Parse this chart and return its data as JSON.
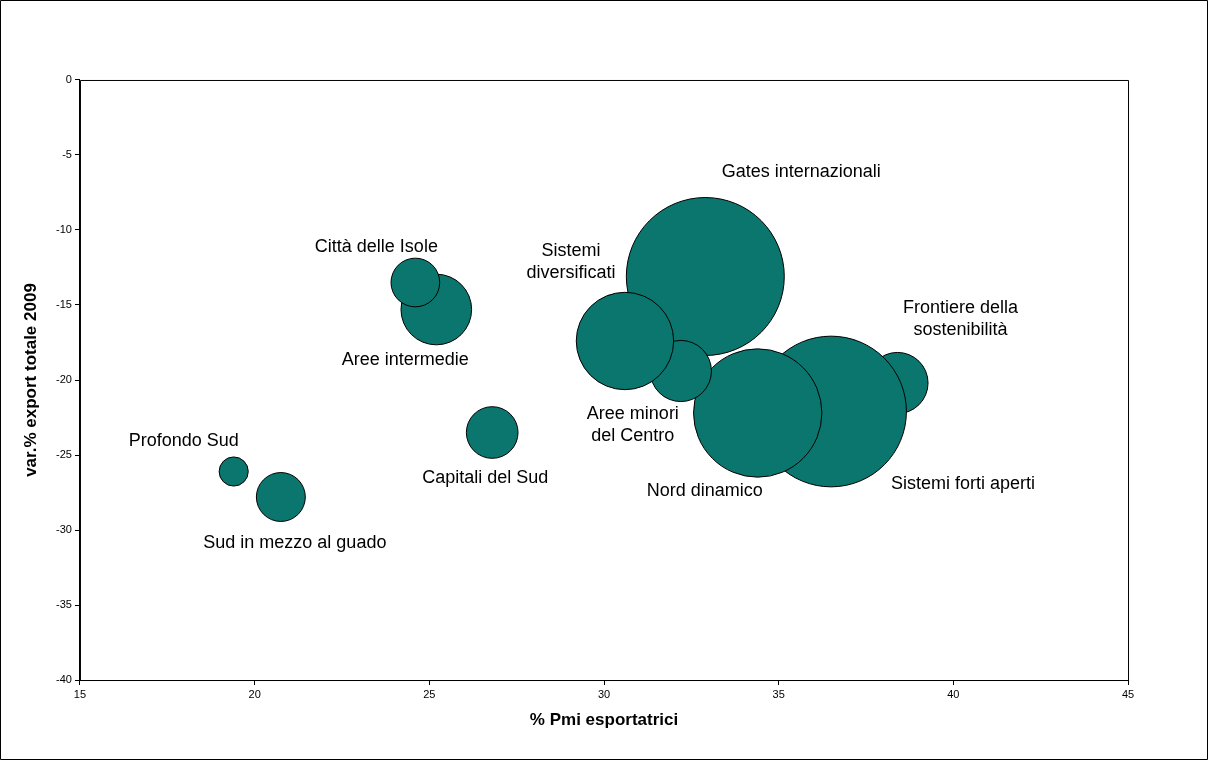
{
  "chart_data": {
    "type": "bubble",
    "xlabel": "% Pmi esportatrici",
    "ylabel": "var.% export totale 2009",
    "xlim": [
      15,
      45
    ],
    "xticks": [
      15,
      20,
      25,
      30,
      35,
      40,
      45
    ],
    "ylim": [
      -40,
      0
    ],
    "yticks": [
      -40,
      -35,
      -30,
      -25,
      -20,
      -15,
      -10,
      -5,
      0
    ],
    "grid": false,
    "legend": false,
    "series": [
      {
        "name": "Profondo Sud",
        "color": "#0b766e",
        "x": [
          19.4
        ],
        "values": [
          -26.1
        ],
        "sizes": [
          0.034
        ]
      },
      {
        "name": "Sud in mezzo al guado",
        "color": "#0b766e",
        "x": [
          20.75
        ],
        "values": [
          -27.8
        ],
        "sizes": [
          0.096
        ]
      },
      {
        "name": "Città delle Isole",
        "color": "#0b766e",
        "x": [
          24.6
        ],
        "values": [
          -13.5
        ],
        "sizes": [
          0.095
        ]
      },
      {
        "name": "Aree intermedie",
        "color": "#0b766e",
        "x": [
          25.2
        ],
        "values": [
          -15.3
        ],
        "sizes": [
          0.2
        ]
      },
      {
        "name": "Capitali del Sud",
        "color": "#0b766e",
        "x": [
          26.8
        ],
        "values": [
          -23.5
        ],
        "sizes": [
          0.107
        ]
      },
      {
        "name": "Sistemi diversificati",
        "color": "#0b766e",
        "x": [
          30.6
        ],
        "values": [
          -17.4
        ],
        "sizes": [
          0.38
        ]
      },
      {
        "name": "Aree minori del Centro",
        "color": "#0b766e",
        "x": [
          32.2
        ],
        "values": [
          -19.4
        ],
        "sizes": [
          0.15
        ]
      },
      {
        "name": "Gates internazionali",
        "color": "#0b766e",
        "x": [
          32.9
        ],
        "values": [
          -13.1
        ],
        "sizes": [
          1
        ]
      },
      {
        "name": "Nord dinamico",
        "color": "#0b766e",
        "x": [
          34.4
        ],
        "values": [
          -22.2
        ],
        "sizes": [
          0.66
        ]
      },
      {
        "name": "Sistemi forti aperti",
        "color": "#0b766e",
        "x": [
          36.5
        ],
        "values": [
          -22.1
        ],
        "sizes": [
          0.91
        ]
      },
      {
        "name": "Frontiere della sostenibilità",
        "color": "#0b766e",
        "x": [
          38.4
        ],
        "values": [
          -20.2
        ],
        "sizes": [
          0.15
        ]
      }
    ]
  }
}
